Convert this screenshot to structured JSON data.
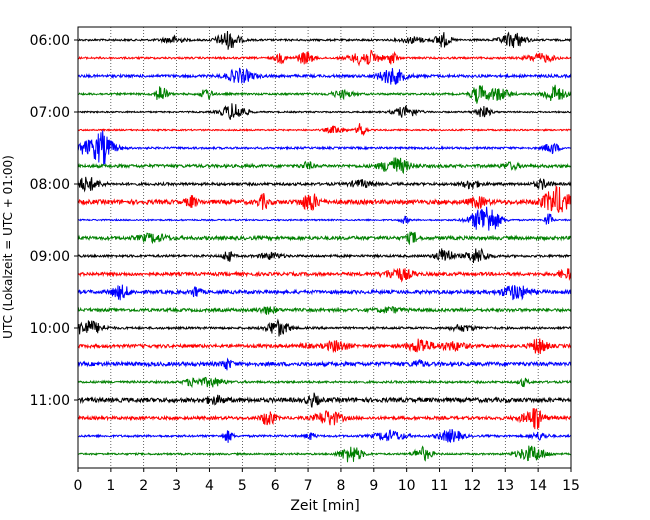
{
  "chart_data": {
    "type": "line",
    "title": "",
    "xlabel": "Zeit  [min]",
    "ylabel": "UTC (Lokalzeit = UTC + 01:00)",
    "xlim": [
      0,
      15
    ],
    "x_ticks": [
      "0",
      "1",
      "2",
      "3",
      "4",
      "5",
      "6",
      "7",
      "8",
      "9",
      "10",
      "11",
      "12",
      "13",
      "14",
      "15"
    ],
    "y_ticks": [
      "06:00",
      "07:00",
      "08:00",
      "09:00",
      "10:00",
      "11:00"
    ],
    "grid_x": true,
    "grid_y": false,
    "trace_colors": [
      "#000000",
      "#ff0000",
      "#0000ff",
      "#008000"
    ],
    "traces": [
      {
        "start": "06:00",
        "color": "#000000"
      },
      {
        "start": "06:15",
        "color": "#ff0000"
      },
      {
        "start": "06:30",
        "color": "#0000ff"
      },
      {
        "start": "06:45",
        "color": "#008000"
      },
      {
        "start": "07:00",
        "color": "#000000"
      },
      {
        "start": "07:15",
        "color": "#ff0000"
      },
      {
        "start": "07:30",
        "color": "#0000ff"
      },
      {
        "start": "07:45",
        "color": "#008000"
      },
      {
        "start": "08:00",
        "color": "#000000"
      },
      {
        "start": "08:15",
        "color": "#ff0000"
      },
      {
        "start": "08:30",
        "color": "#0000ff"
      },
      {
        "start": "08:45",
        "color": "#008000"
      },
      {
        "start": "09:00",
        "color": "#000000"
      },
      {
        "start": "09:15",
        "color": "#ff0000"
      },
      {
        "start": "09:30",
        "color": "#0000ff"
      },
      {
        "start": "09:45",
        "color": "#008000"
      },
      {
        "start": "10:00",
        "color": "#000000"
      },
      {
        "start": "10:15",
        "color": "#ff0000"
      },
      {
        "start": "10:30",
        "color": "#0000ff"
      },
      {
        "start": "10:45",
        "color": "#008000"
      },
      {
        "start": "11:00",
        "color": "#000000"
      },
      {
        "start": "11:15",
        "color": "#ff0000"
      },
      {
        "start": "11:30",
        "color": "#0000ff"
      },
      {
        "start": "11:45",
        "color": "#008000"
      }
    ]
  }
}
